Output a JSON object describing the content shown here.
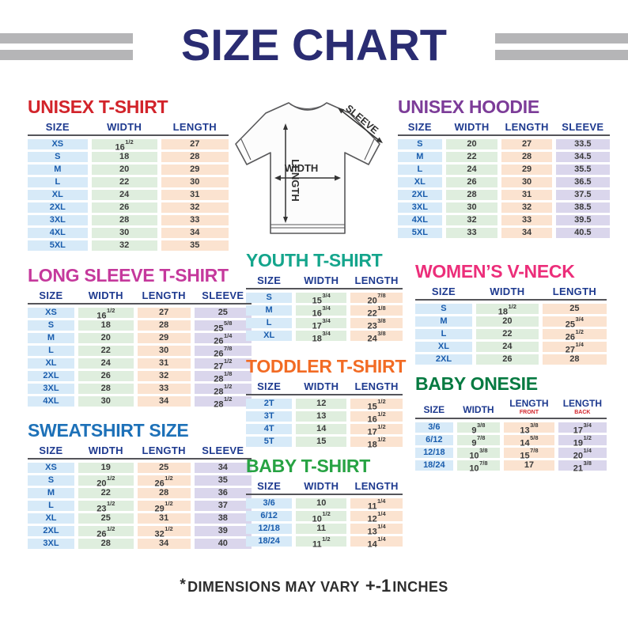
{
  "header": {
    "title": "SIZE CHART"
  },
  "diagram": {
    "width_label": "WIDTH",
    "length_label": "LENGTH",
    "sleeve_label": "SLEEVE"
  },
  "palette": {
    "page_title": "#2A2C72",
    "size_col_bg": "#D7EAF8",
    "width_col_bg": "#DFEEDE",
    "length_col_bg": "#FBE3D0",
    "sleeve_col_bg": "#DAD6EC",
    "header_text": "#1E3A8F",
    "size_text": "#1A5DAD",
    "value_text": "#3A3A3A",
    "sub_header_text": "#D2232A"
  },
  "tables": {
    "unisex_tshirt": {
      "title": "UNISEX T-SHIRT",
      "title_color": "#D2232A",
      "columns": [
        {
          "label": "SIZE",
          "type": "size"
        },
        {
          "label": "WIDTH",
          "type": "width"
        },
        {
          "label": "LENGTH",
          "type": "length"
        }
      ],
      "rows": [
        [
          "XS",
          "16{1/2}",
          "27"
        ],
        [
          "S",
          "18",
          "28"
        ],
        [
          "M",
          "20",
          "29"
        ],
        [
          "L",
          "22",
          "30"
        ],
        [
          "XL",
          "24",
          "31"
        ],
        [
          "2XL",
          "26",
          "32"
        ],
        [
          "3XL",
          "28",
          "33"
        ],
        [
          "4XL",
          "30",
          "34"
        ],
        [
          "5XL",
          "32",
          "35"
        ]
      ]
    },
    "unisex_hoodie": {
      "title": "UNISEX HOODIE",
      "title_color": "#7C3C98",
      "columns": [
        {
          "label": "SIZE",
          "type": "size"
        },
        {
          "label": "WIDTH",
          "type": "width"
        },
        {
          "label": "LENGTH",
          "type": "length"
        },
        {
          "label": "SLEEVE",
          "type": "sleeve"
        }
      ],
      "rows": [
        [
          "S",
          "20",
          "27",
          "33.5"
        ],
        [
          "M",
          "22",
          "28",
          "34.5"
        ],
        [
          "L",
          "24",
          "29",
          "35.5"
        ],
        [
          "XL",
          "26",
          "30",
          "36.5"
        ],
        [
          "2XL",
          "28",
          "31",
          "37.5"
        ],
        [
          "3XL",
          "30",
          "32",
          "38.5"
        ],
        [
          "4XL",
          "32",
          "33",
          "39.5"
        ],
        [
          "5XL",
          "33",
          "34",
          "40.5"
        ]
      ]
    },
    "long_sleeve_tshirt": {
      "title": "LONG SLEEVE T-SHIRT",
      "title_color": "#C5399C",
      "columns": [
        {
          "label": "SIZE",
          "type": "size"
        },
        {
          "label": "WIDTH",
          "type": "width"
        },
        {
          "label": "LENGTH",
          "type": "length"
        },
        {
          "label": "SLEEVE",
          "type": "sleeve"
        }
      ],
      "rows": [
        [
          "XS",
          "16{1/2}",
          "27",
          "25"
        ],
        [
          "S",
          "18",
          "28",
          "25{5/8}"
        ],
        [
          "M",
          "20",
          "29",
          "26{1/4}"
        ],
        [
          "L",
          "22",
          "30",
          "26{7/8}"
        ],
        [
          "XL",
          "24",
          "31",
          "27{1/2}"
        ],
        [
          "2XL",
          "26",
          "32",
          "28{1/8}"
        ],
        [
          "3XL",
          "28",
          "33",
          "28{1/2}"
        ],
        [
          "4XL",
          "30",
          "34",
          "28{1/2}"
        ]
      ]
    },
    "youth_tshirt": {
      "title": "YOUTH T-SHIRT",
      "title_color": "#14A58C",
      "columns": [
        {
          "label": "SIZE",
          "type": "size"
        },
        {
          "label": "WIDTH",
          "type": "width"
        },
        {
          "label": "LENGTH",
          "type": "length"
        }
      ],
      "rows": [
        [
          "S",
          "15{3/4}",
          "20{7/8}"
        ],
        [
          "M",
          "16{3/4}",
          "22{1/8}"
        ],
        [
          "L",
          "17{3/4}",
          "23{3/8}"
        ],
        [
          "XL",
          "18{3/4}",
          "24{3/8}"
        ]
      ]
    },
    "womens_vneck": {
      "title": "WOMEN’S V-NECK",
      "title_color": "#EC2E7A",
      "columns": [
        {
          "label": "SIZE",
          "type": "size"
        },
        {
          "label": "WIDTH",
          "type": "width"
        },
        {
          "label": "LENGTH",
          "type": "length"
        }
      ],
      "rows": [
        [
          "S",
          "18{1/2}",
          "25"
        ],
        [
          "M",
          "20",
          "25{3/4}"
        ],
        [
          "L",
          "22",
          "26{1/2}"
        ],
        [
          "XL",
          "24",
          "27{1/4}"
        ],
        [
          "2XL",
          "26",
          "28"
        ]
      ]
    },
    "toddler_tshirt": {
      "title": "TODDLER T-SHIRT",
      "title_color": "#F26B24",
      "columns": [
        {
          "label": "SIZE",
          "type": "size"
        },
        {
          "label": "WIDTH",
          "type": "width"
        },
        {
          "label": "LENGTH",
          "type": "length"
        }
      ],
      "rows": [
        [
          "2T",
          "12",
          "15{1/2}"
        ],
        [
          "3T",
          "13",
          "16{1/2}"
        ],
        [
          "4T",
          "14",
          "17{1/2}"
        ],
        [
          "5T",
          "15",
          "18{1/2}"
        ]
      ]
    },
    "sweatshirt": {
      "title": "SWEATSHIRT SIZE",
      "title_color": "#1D71B8",
      "columns": [
        {
          "label": "SIZE",
          "type": "size"
        },
        {
          "label": "WIDTH",
          "type": "width"
        },
        {
          "label": "LENGTH",
          "type": "length"
        },
        {
          "label": "SLEEVE",
          "type": "sleeve"
        }
      ],
      "rows": [
        [
          "XS",
          "19",
          "25",
          "34"
        ],
        [
          "S",
          "20{1/2}",
          "26{1/2}",
          "35"
        ],
        [
          "M",
          "22",
          "28",
          "36"
        ],
        [
          "L",
          "23{1/2}",
          "29{1/2}",
          "37"
        ],
        [
          "XL",
          "25",
          "31",
          "38"
        ],
        [
          "2XL",
          "26{1/2}",
          "32{1/2}",
          "39"
        ],
        [
          "3XL",
          "28",
          "34",
          "40"
        ]
      ]
    },
    "baby_tshirt": {
      "title": "BABY T-SHIRT",
      "title_color": "#27A343",
      "columns": [
        {
          "label": "SIZE",
          "type": "size"
        },
        {
          "label": "WIDTH",
          "type": "width"
        },
        {
          "label": "LENGTH",
          "type": "length"
        }
      ],
      "rows": [
        [
          "3/6",
          "10",
          "11{1/4}"
        ],
        [
          "6/12",
          "10{1/2}",
          "12{1/4}"
        ],
        [
          "12/18",
          "11",
          "13{1/4}"
        ],
        [
          "18/24",
          "11{1/2}",
          "14{1/4}"
        ]
      ]
    },
    "baby_onesie": {
      "title": "BABY ONESIE",
      "title_color": "#067A41",
      "columns": [
        {
          "label": "SIZE",
          "type": "size"
        },
        {
          "label": "WIDTH",
          "type": "width"
        },
        {
          "label": "LENGTH",
          "sub": "FRONT",
          "type": "length"
        },
        {
          "label": "LENGTH",
          "sub": "BACK",
          "type": "sleeve"
        }
      ],
      "rows": [
        [
          "3/6",
          "9{3/8}",
          "13{3/8}",
          "17{3/4}"
        ],
        [
          "6/12",
          "9{7/8}",
          "14{5/8}",
          "19{1/2}"
        ],
        [
          "12/18",
          "10{3/8}",
          "15{7/8}",
          "20{1/4}"
        ],
        [
          "18/24",
          "10{7/8}",
          "17",
          "21{3/8}"
        ]
      ]
    }
  },
  "footer": {
    "asterisk": "*",
    "text": "DIMENSIONS MAY VARY",
    "plus_minus": "+-1",
    "units": "INCHES"
  }
}
